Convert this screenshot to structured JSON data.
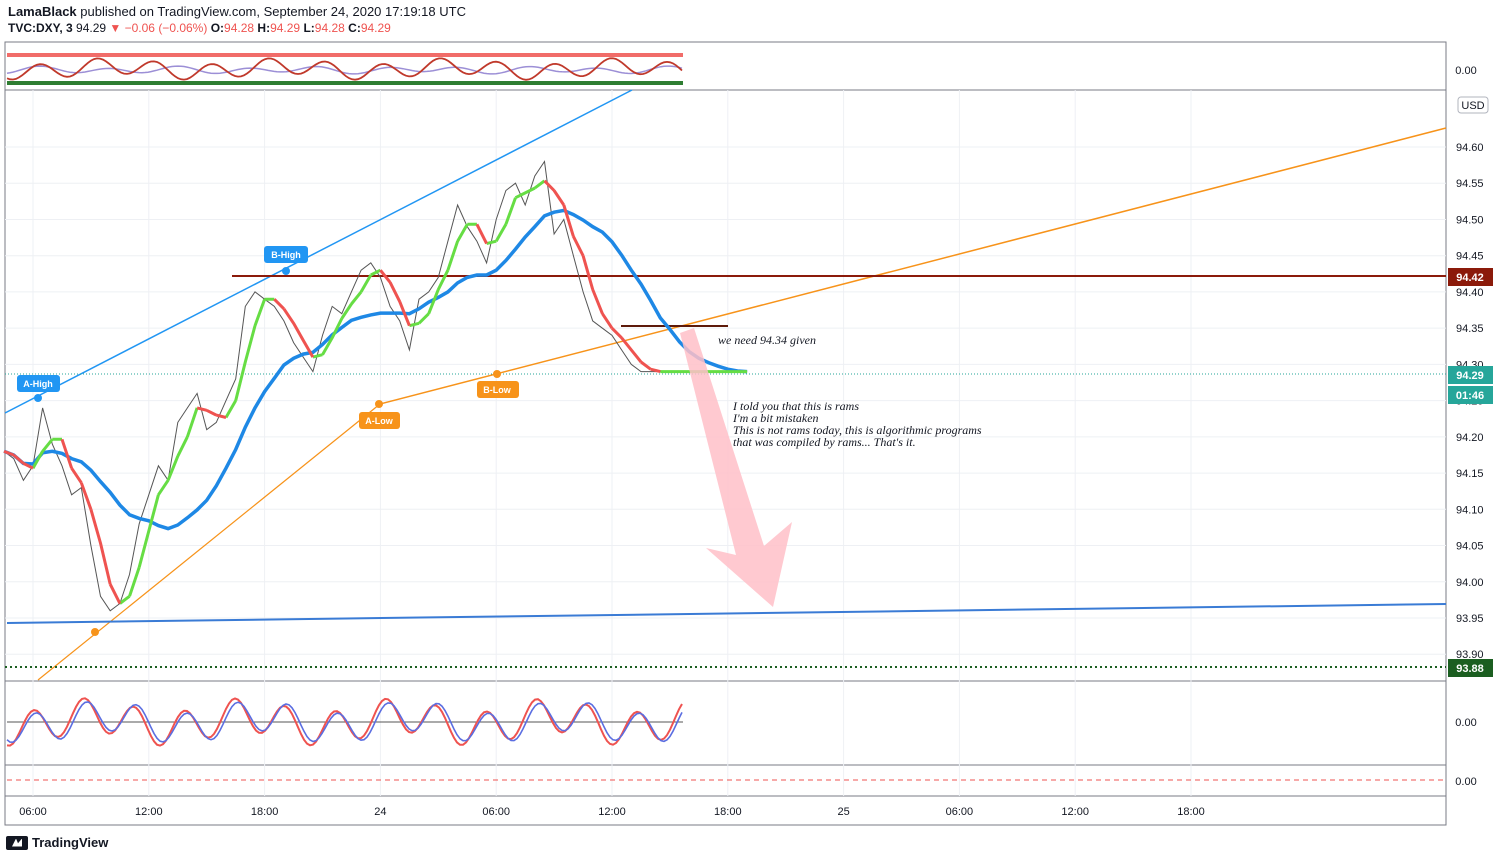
{
  "header": {
    "author": "LamaBlack",
    "published_text": "published on TradingView.com, September 24, 2020 17:19:18 UTC",
    "symbol": "TVC:DXY, 3",
    "last": "94.29",
    "change": "▼ −0.06 (−0.06%)",
    "o_label": "O:",
    "o_val": "94.28",
    "h_label": "H:",
    "h_val": "94.29",
    "l_label": "L:",
    "l_val": "94.28",
    "c_label": "C:",
    "c_val": "94.29"
  },
  "branding": {
    "logo_text": "TradingView"
  },
  "colors": {
    "up": "#26a69a",
    "down": "#ef5350",
    "ma_blue": "#1e88e5",
    "trend_orange": "#f7931a",
    "resistance": "#8b1a0a",
    "target_arrow": "#ffc0c8",
    "support_green": "#2e7d32"
  },
  "chart_data": {
    "type": "line",
    "symbol": "TVC:DXY",
    "interval": "3",
    "currency_label": "USD",
    "y_ticks": [
      "94.60",
      "94.55",
      "94.50",
      "94.45",
      "94.40",
      "94.35",
      "94.30",
      "94.25",
      "94.20",
      "94.15",
      "94.10",
      "94.05",
      "94.00",
      "93.95",
      "93.90"
    ],
    "ylim": [
      93.88,
      94.63
    ],
    "x_ticks": [
      "06:00",
      "12:00",
      "18:00",
      "24",
      "06:00",
      "12:00",
      "18:00",
      "25",
      "06:00",
      "12:00",
      "18:00"
    ],
    "x_tick_hours": [
      6,
      12,
      18,
      24,
      30,
      36,
      42,
      48,
      54,
      60,
      66
    ],
    "xlim": [
      4.5,
      80.5
    ],
    "price_series": {
      "x": [
        4.5,
        5,
        5.5,
        6,
        6.5,
        7,
        7.5,
        8,
        8.5,
        9,
        9.5,
        10,
        10.5,
        11,
        11.5,
        12,
        12.5,
        13,
        13.5,
        14,
        14.5,
        15,
        15.5,
        16,
        16.5,
        17,
        17.5,
        18,
        18.5,
        19,
        19.5,
        20,
        20.5,
        21,
        21.5,
        22,
        22.5,
        23,
        23.5,
        24,
        24.5,
        25,
        25.5,
        26,
        26.5,
        27,
        27.5,
        28,
        28.5,
        29,
        29.5,
        30,
        30.5,
        31,
        31.5,
        32,
        32.5,
        33,
        33.5,
        34,
        34.5,
        35,
        35.5,
        36,
        36.5,
        37,
        37.5,
        38,
        38.5,
        39,
        39.5,
        40,
        40.5,
        41,
        41.5,
        42,
        42.5,
        43
      ],
      "close": [
        94.18,
        94.17,
        94.14,
        94.16,
        94.24,
        94.19,
        94.16,
        94.12,
        94.13,
        94.05,
        93.98,
        93.96,
        93.97,
        94.01,
        94.08,
        94.12,
        94.16,
        94.14,
        94.22,
        94.24,
        94.26,
        94.21,
        94.22,
        94.25,
        94.28,
        94.38,
        94.4,
        94.39,
        94.38,
        94.36,
        94.33,
        94.31,
        94.29,
        94.34,
        94.38,
        94.37,
        94.4,
        94.43,
        94.44,
        94.42,
        94.38,
        94.36,
        94.32,
        94.39,
        94.4,
        94.42,
        94.47,
        94.52,
        94.49,
        94.47,
        94.44,
        94.5,
        94.54,
        94.55,
        94.52,
        94.56,
        94.58,
        94.48,
        94.5,
        94.45,
        94.4,
        94.36,
        94.35,
        94.34,
        94.32,
        94.3,
        94.29,
        94.29,
        94.29,
        94.29,
        94.29,
        94.29,
        94.29,
        94.29,
        94.29,
        94.29,
        94.29,
        94.29
      ]
    },
    "annotations": {
      "a_high": "A-High",
      "b_high": "B-High",
      "a_low": "A-Low",
      "b_low": "B-Low",
      "note1": "we need 94.34 given",
      "note2_lines": [
        "I told you that this is rams",
        "I'm a bit mistaken",
        "This is not rams today, this is algorithmic programs",
        "that was compiled by rams... That's it."
      ]
    },
    "price_labels": {
      "resistance": "94.42",
      "last": "94.29",
      "countdown": "01:46",
      "support": "93.88"
    },
    "top_osc_zero": "0.00",
    "bottom_osc_zero": "0.00",
    "bottom_osc2_zero": "0.00",
    "grid": true
  }
}
